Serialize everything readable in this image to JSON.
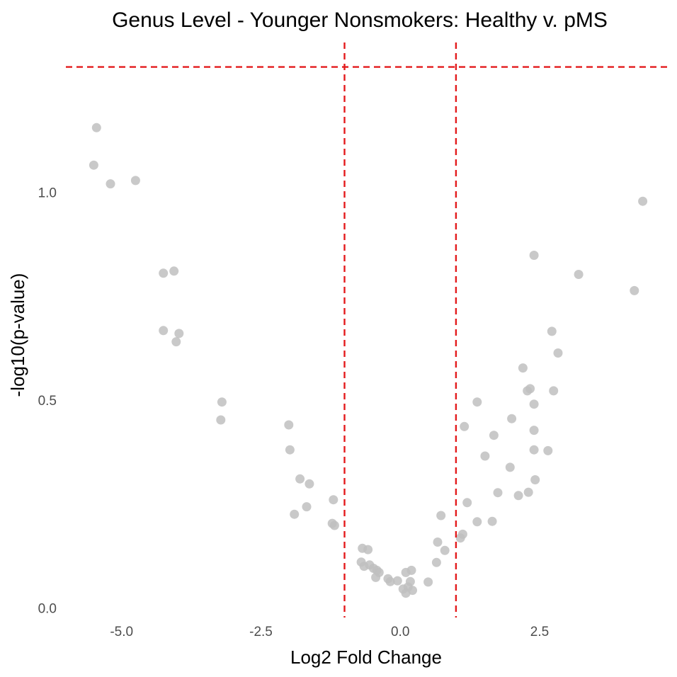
{
  "chart_data": {
    "type": "scatter",
    "title": "Genus Level - Younger Nonsmokers: Healthy v. pMS",
    "xlabel": "Log2 Fold Change",
    "ylabel": "-log10(p-value)",
    "xlim": [
      -6.0,
      4.8
    ],
    "ylim": [
      -0.02,
      1.36
    ],
    "x_ticks": [
      {
        "value": -5.0,
        "label": "-5.0"
      },
      {
        "value": -2.5,
        "label": "-2.5"
      },
      {
        "value": 0.0,
        "label": "0.0"
      },
      {
        "value": 2.5,
        "label": "2.5"
      }
    ],
    "y_ticks": [
      {
        "value": 0.0,
        "label": "0.0"
      },
      {
        "value": 0.5,
        "label": "0.5"
      },
      {
        "value": 1.0,
        "label": "1.0"
      }
    ],
    "grid": false,
    "reference_lines": {
      "vertical": [
        -1,
        1
      ],
      "horizontal": [
        1.301
      ],
      "color": "#e31a1c",
      "style": "dashed"
    },
    "point_color": "#bfbfbf",
    "points": [
      {
        "x": -5.45,
        "y": 1.155
      },
      {
        "x": -5.5,
        "y": 1.065
      },
      {
        "x": -5.2,
        "y": 1.02
      },
      {
        "x": -4.75,
        "y": 1.028
      },
      {
        "x": -4.25,
        "y": 0.805
      },
      {
        "x": -4.06,
        "y": 0.81
      },
      {
        "x": -4.25,
        "y": 0.667
      },
      {
        "x": -3.97,
        "y": 0.66
      },
      {
        "x": -4.02,
        "y": 0.64
      },
      {
        "x": -3.2,
        "y": 0.495
      },
      {
        "x": -3.22,
        "y": 0.452
      },
      {
        "x": -2.0,
        "y": 0.44
      },
      {
        "x": -1.98,
        "y": 0.38
      },
      {
        "x": -1.8,
        "y": 0.31
      },
      {
        "x": -1.63,
        "y": 0.298
      },
      {
        "x": -1.9,
        "y": 0.225
      },
      {
        "x": -1.68,
        "y": 0.243
      },
      {
        "x": -1.2,
        "y": 0.26
      },
      {
        "x": -1.22,
        "y": 0.203
      },
      {
        "x": -1.18,
        "y": 0.198
      },
      {
        "x": -0.68,
        "y": 0.143
      },
      {
        "x": -0.58,
        "y": 0.14
      },
      {
        "x": -0.7,
        "y": 0.11
      },
      {
        "x": -0.65,
        "y": 0.1
      },
      {
        "x": -0.55,
        "y": 0.103
      },
      {
        "x": -0.48,
        "y": 0.095
      },
      {
        "x": -0.42,
        "y": 0.09
      },
      {
        "x": -0.38,
        "y": 0.085
      },
      {
        "x": -0.44,
        "y": 0.073
      },
      {
        "x": -0.22,
        "y": 0.07
      },
      {
        "x": -0.18,
        "y": 0.063
      },
      {
        "x": -0.05,
        "y": 0.065
      },
      {
        "x": 0.1,
        "y": 0.085
      },
      {
        "x": 0.2,
        "y": 0.09
      },
      {
        "x": 0.18,
        "y": 0.063
      },
      {
        "x": 0.14,
        "y": 0.05
      },
      {
        "x": 0.05,
        "y": 0.045
      },
      {
        "x": 0.1,
        "y": 0.035
      },
      {
        "x": 0.22,
        "y": 0.042
      },
      {
        "x": 0.5,
        "y": 0.062
      },
      {
        "x": 0.65,
        "y": 0.109
      },
      {
        "x": 0.67,
        "y": 0.158
      },
      {
        "x": 0.8,
        "y": 0.138
      },
      {
        "x": 0.73,
        "y": 0.222
      },
      {
        "x": 1.08,
        "y": 0.168
      },
      {
        "x": 1.12,
        "y": 0.177
      },
      {
        "x": 1.15,
        "y": 0.436
      },
      {
        "x": 1.2,
        "y": 0.253
      },
      {
        "x": 1.38,
        "y": 0.495
      },
      {
        "x": 1.38,
        "y": 0.207
      },
      {
        "x": 1.52,
        "y": 0.365
      },
      {
        "x": 1.65,
        "y": 0.208
      },
      {
        "x": 1.68,
        "y": 0.415
      },
      {
        "x": 1.75,
        "y": 0.277
      },
      {
        "x": 1.97,
        "y": 0.338
      },
      {
        "x": 2.0,
        "y": 0.455
      },
      {
        "x": 2.12,
        "y": 0.27
      },
      {
        "x": 2.2,
        "y": 0.577
      },
      {
        "x": 2.28,
        "y": 0.522
      },
      {
        "x": 2.33,
        "y": 0.527
      },
      {
        "x": 2.3,
        "y": 0.278
      },
      {
        "x": 2.4,
        "y": 0.49
      },
      {
        "x": 2.4,
        "y": 0.427
      },
      {
        "x": 2.4,
        "y": 0.38
      },
      {
        "x": 2.42,
        "y": 0.308
      },
      {
        "x": 2.4,
        "y": 0.848
      },
      {
        "x": 2.65,
        "y": 0.378
      },
      {
        "x": 2.72,
        "y": 0.665
      },
      {
        "x": 2.75,
        "y": 0.522
      },
      {
        "x": 2.83,
        "y": 0.613
      },
      {
        "x": 3.2,
        "y": 0.802
      },
      {
        "x": 4.2,
        "y": 0.763
      },
      {
        "x": 4.35,
        "y": 0.978
      }
    ]
  }
}
